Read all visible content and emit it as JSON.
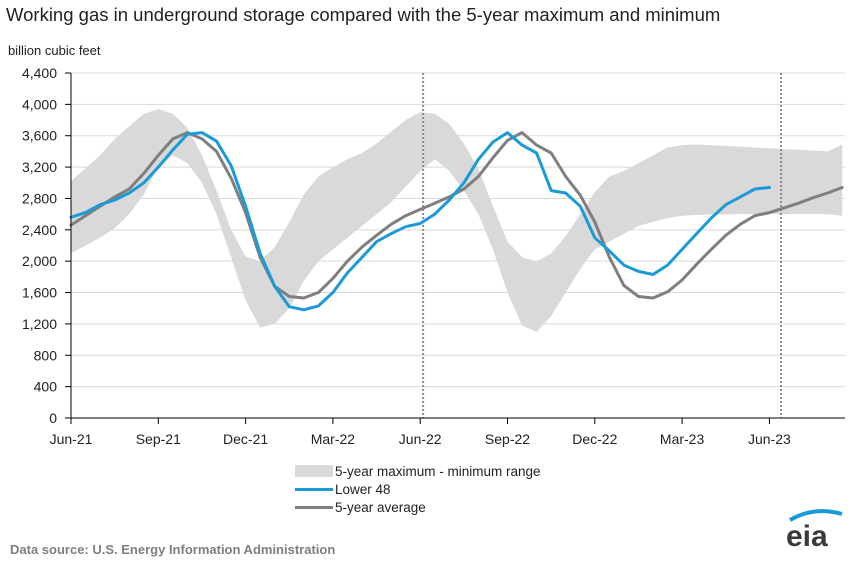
{
  "chart_data": {
    "type": "line",
    "title": "Working gas in underground  storage compared with the 5-year maximum and minimum",
    "ylabel": "billion cubic feet",
    "ylim": [
      0,
      4400
    ],
    "yticks": [
      0,
      400,
      800,
      1200,
      1600,
      2000,
      2400,
      2800,
      3200,
      3600,
      4000,
      4400
    ],
    "ytick_labels": [
      "0",
      "400",
      "800",
      "1,200",
      "1,600",
      "2,000",
      "2,400",
      "2,800",
      "3,200",
      "3,600",
      "4,000",
      "4,400"
    ],
    "x_tick_labels": [
      "Jun-21",
      "Sep-21",
      "Dec-21",
      "Mar-22",
      "Jun-22",
      "Sep-22",
      "Dec-22",
      "Mar-23",
      "Jun-23"
    ],
    "x": [
      0,
      1,
      1.5,
      2,
      2.5,
      3,
      3.5,
      4,
      4.5,
      5,
      5.5,
      6,
      6.5,
      7,
      7.5,
      8,
      8.5,
      9,
      9.5,
      10,
      10.5,
      11,
      11.5,
      12,
      12.5,
      13,
      13.5,
      14,
      14.5,
      15,
      15.5,
      16,
      16.5,
      17,
      17.5,
      18,
      18.5,
      19,
      19.5,
      20,
      20.5,
      21,
      21.5,
      22,
      22.5,
      23,
      23.5,
      24,
      24.5,
      25,
      25.5,
      26,
      26.5
    ],
    "grid": true,
    "dashed_vertical_markers": [
      12.1,
      24.4
    ],
    "series": [
      {
        "name": "5-year maximum - minimum range",
        "kind": "band",
        "color": "#d9d9d9",
        "upper": [
          3020,
          3350,
          3560,
          3720,
          3880,
          3940,
          3880,
          3700,
          3350,
          2900,
          2400,
          2060,
          2000,
          2180,
          2500,
          2850,
          3080,
          3200,
          3300,
          3380,
          3500,
          3650,
          3800,
          3900,
          3880,
          3750,
          3500,
          3180,
          2700,
          2250,
          2050,
          2000,
          2100,
          2320,
          2600,
          2880,
          3080,
          3150,
          3250,
          3350,
          3450,
          3480,
          3490,
          3480,
          3470,
          3460,
          3450,
          3440,
          3430,
          3420,
          3410,
          3400,
          3490
        ],
        "lower": [
          2100,
          2300,
          2420,
          2600,
          2850,
          3200,
          3350,
          3250,
          3000,
          2600,
          2050,
          1500,
          1150,
          1200,
          1400,
          1750,
          2000,
          2150,
          2300,
          2450,
          2600,
          2750,
          2950,
          3150,
          3300,
          3150,
          2900,
          2600,
          2150,
          1600,
          1180,
          1100,
          1300,
          1600,
          1900,
          2150,
          2250,
          2350,
          2450,
          2500,
          2550,
          2580,
          2590,
          2595,
          2598,
          2600,
          2600,
          2600,
          2600,
          2600,
          2600,
          2600,
          2580
        ]
      },
      {
        "name": "Lower 48",
        "kind": "line",
        "color": "#1a9bd7",
        "x": [
          0,
          0.5,
          1,
          1.5,
          2,
          2.5,
          3,
          3.5,
          4,
          4.5,
          5,
          5.5,
          6,
          6.5,
          7,
          7.5,
          8,
          8.5,
          9,
          9.5,
          10,
          10.5,
          11,
          11.5,
          12,
          12.5,
          13,
          13.5,
          14,
          14.5,
          15,
          15.5,
          16,
          16.5,
          17,
          17.5,
          18,
          18.5,
          19,
          19.5,
          20,
          20.5,
          21,
          21.5,
          22,
          22.5,
          23,
          23.5,
          24
        ],
        "values": [
          2560,
          2620,
          2720,
          2780,
          2870,
          3000,
          3200,
          3420,
          3620,
          3640,
          3530,
          3220,
          2700,
          2100,
          1680,
          1420,
          1380,
          1430,
          1600,
          1850,
          2050,
          2250,
          2350,
          2440,
          2480,
          2600,
          2780,
          3000,
          3300,
          3520,
          3640,
          3480,
          3380,
          2900,
          2870,
          2700,
          2300,
          2130,
          1950,
          1870,
          1830,
          1950,
          2150,
          2350,
          2550,
          2720,
          2820,
          2920,
          2940
        ]
      },
      {
        "name": "5-year average",
        "kind": "line",
        "color": "#7f7f7f",
        "x": [
          0,
          1,
          1.5,
          2,
          2.5,
          3,
          3.5,
          4,
          4.5,
          5,
          5.5,
          6,
          6.5,
          7,
          7.5,
          8,
          8.5,
          9,
          9.5,
          10,
          10.5,
          11,
          11.5,
          12,
          12.5,
          13,
          13.5,
          14,
          14.5,
          15,
          15.5,
          16,
          16.5,
          17,
          17.5,
          18,
          18.5,
          19,
          19.5,
          20,
          20.5,
          21,
          21.5,
          22,
          22.5,
          23,
          23.5,
          24,
          24.5,
          25,
          25.5,
          26,
          26.5
        ],
        "values": [
          2460,
          2700,
          2820,
          2920,
          3120,
          3350,
          3560,
          3640,
          3560,
          3400,
          3060,
          2620,
          2050,
          1680,
          1550,
          1530,
          1600,
          1780,
          2000,
          2180,
          2330,
          2470,
          2580,
          2660,
          2740,
          2820,
          2920,
          3080,
          3320,
          3540,
          3640,
          3480,
          3380,
          3080,
          2840,
          2500,
          2050,
          1690,
          1550,
          1530,
          1610,
          1760,
          1960,
          2150,
          2330,
          2470,
          2580,
          2620,
          2680,
          2740,
          2810,
          2870,
          2940
        ]
      }
    ],
    "legend_placement": "bottom-center"
  },
  "source": "Data source:  U.S. Energy Information Administration",
  "logo_text": "eia"
}
